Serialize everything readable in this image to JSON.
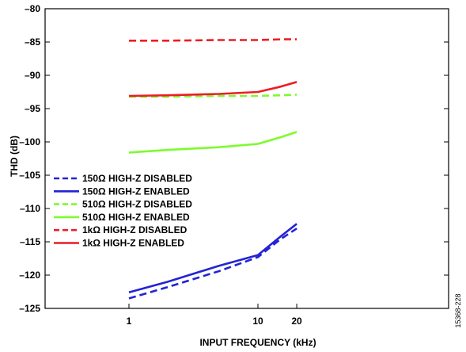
{
  "chart_data": {
    "type": "line",
    "title": "",
    "xlabel": "INPUT FREQUENCY (kHz)",
    "ylabel": "THD (dB)",
    "xscale": "log",
    "xticks": [
      1,
      10,
      20
    ],
    "xtick_labels": [
      "1",
      "10",
      "20"
    ],
    "ylim": [
      -125,
      -80
    ],
    "yticks": [
      -125,
      -120,
      -115,
      -110,
      -105,
      -100,
      -95,
      -90,
      -85,
      -80
    ],
    "ytick_labels": [
      "–125",
      "–120",
      "–115",
      "–110",
      "–105",
      "–100",
      "–95",
      "–90",
      "–85",
      "–80"
    ],
    "grid": false,
    "legend_position": "lower-left",
    "series": [
      {
        "name": "150Ω HIGH-Z DISABLED",
        "color": "#2323d6",
        "dash": true,
        "x": [
          1,
          2,
          5,
          10,
          15,
          20
        ],
        "y": [
          -123.5,
          -121.8,
          -119.4,
          -117.3,
          -114.6,
          -113.0
        ]
      },
      {
        "name": "150Ω HIGH-Z ENABLED",
        "color": "#2323d6",
        "dash": false,
        "x": [
          1,
          2,
          5,
          10,
          15,
          20
        ],
        "y": [
          -122.6,
          -121.0,
          -118.6,
          -117.0,
          -114.2,
          -112.3
        ]
      },
      {
        "name": "510Ω HIGH-Z DISABLED",
        "color": "#7cfc2c",
        "dash": true,
        "x": [
          1,
          2,
          5,
          10,
          15,
          20
        ],
        "y": [
          -93.2,
          -93.2,
          -93.1,
          -93.1,
          -93.0,
          -92.9
        ]
      },
      {
        "name": "510Ω HIGH-Z ENABLED",
        "color": "#7cfc2c",
        "dash": false,
        "x": [
          1,
          2,
          5,
          10,
          15,
          20
        ],
        "y": [
          -101.6,
          -101.2,
          -100.8,
          -100.3,
          -99.3,
          -98.5
        ]
      },
      {
        "name": "1kΩ HIGH-Z DISABLED",
        "color": "#ee1c25",
        "dash": true,
        "x": [
          1,
          2,
          5,
          10,
          15,
          20
        ],
        "y": [
          -84.8,
          -84.8,
          -84.7,
          -84.7,
          -84.6,
          -84.6
        ]
      },
      {
        "name": "1kΩ HIGH-Z ENABLED",
        "color": "#ee1c25",
        "dash": false,
        "x": [
          1,
          2,
          5,
          10,
          15,
          20
        ],
        "y": [
          -93.1,
          -93.0,
          -92.8,
          -92.5,
          -91.7,
          -91.0
        ]
      }
    ],
    "figure_id": "15368-228"
  }
}
